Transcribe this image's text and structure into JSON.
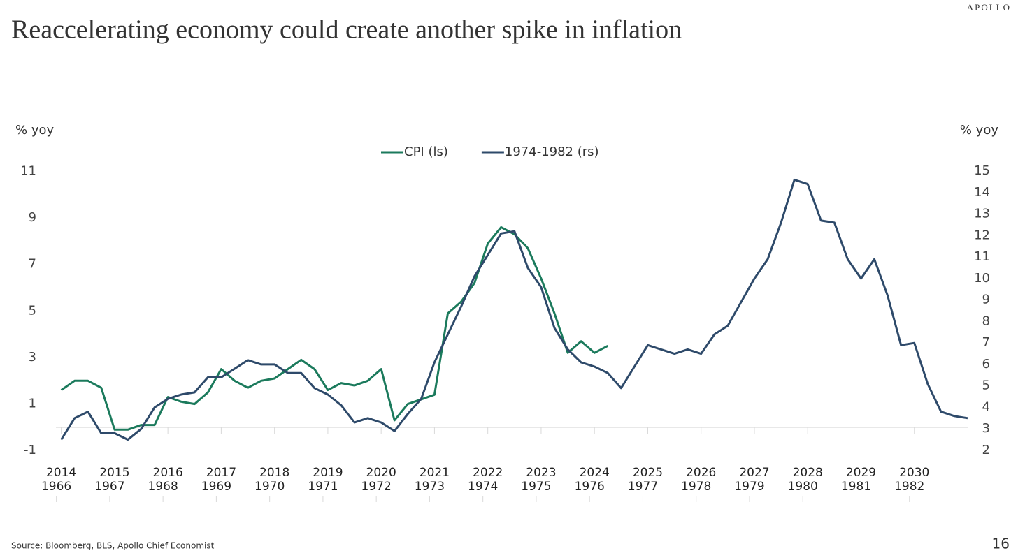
{
  "brand": "APOLLO",
  "page_number": "16",
  "source": "Source: Bloomberg, BLS, Apollo Chief Economist",
  "chart_data": {
    "type": "line",
    "title": "Reaccelerating economy could create another spike in inflation",
    "y_label": "% yoy",
    "y2_label": "% yoy",
    "x": [
      2014,
      2014.25,
      2014.5,
      2014.75,
      2015,
      2015.25,
      2015.5,
      2015.75,
      2016,
      2016.25,
      2016.5,
      2016.75,
      2017,
      2017.25,
      2017.5,
      2017.75,
      2018,
      2018.25,
      2018.5,
      2018.75,
      2019,
      2019.25,
      2019.5,
      2019.75,
      2020,
      2020.25,
      2020.5,
      2020.75,
      2021,
      2021.25,
      2021.5,
      2021.75,
      2022,
      2022.25,
      2022.5,
      2022.75,
      2023,
      2023.25,
      2023.5,
      2023.75,
      2024,
      2024.25,
      2024.5,
      2024.75,
      2025,
      2025.25,
      2025.5,
      2025.75,
      2026,
      2026.25,
      2026.5,
      2026.75,
      2027,
      2027.25,
      2027.5,
      2027.75,
      2028,
      2028.25,
      2028.5,
      2028.75,
      2029,
      2029.25,
      2029.5,
      2029.75,
      2030,
      2030.25,
      2030.5,
      2030.75,
      2031
    ],
    "series": [
      {
        "name": "CPI (ls)",
        "color": "#1b7a5c",
        "axis": "y",
        "values": [
          1.6,
          2.0,
          2.0,
          1.7,
          -0.1,
          -0.1,
          0.1,
          0.1,
          1.3,
          1.1,
          1.0,
          1.5,
          2.5,
          2.0,
          1.7,
          2.0,
          2.1,
          2.5,
          2.9,
          2.5,
          1.6,
          1.9,
          1.8,
          2.0,
          2.5,
          0.3,
          1.0,
          1.2,
          1.4,
          4.9,
          5.4,
          6.2,
          7.9,
          8.6,
          8.3,
          7.7,
          6.4,
          4.9,
          3.2,
          3.7,
          3.2,
          3.5,
          null,
          null,
          null,
          null,
          null,
          null,
          null,
          null,
          null,
          null,
          null,
          null,
          null,
          null,
          null,
          null,
          null,
          null,
          null,
          null,
          null,
          null,
          null,
          null,
          null,
          null,
          null
        ]
      },
      {
        "name": "1974-1982 (rs)",
        "color": "#2e4a6a",
        "axis": "y2",
        "values": [
          2.5,
          3.5,
          3.8,
          2.8,
          2.8,
          2.5,
          3.0,
          4.0,
          4.4,
          4.6,
          4.7,
          5.4,
          5.4,
          5.8,
          6.2,
          6.0,
          6.0,
          5.6,
          5.6,
          4.9,
          4.6,
          4.1,
          3.3,
          3.5,
          3.3,
          2.9,
          3.7,
          4.4,
          6.1,
          7.4,
          8.7,
          10.1,
          11.1,
          12.1,
          12.2,
          10.5,
          9.6,
          7.7,
          6.7,
          6.1,
          5.9,
          5.6,
          4.9,
          5.9,
          6.9,
          6.7,
          6.5,
          6.7,
          6.5,
          7.4,
          7.8,
          8.9,
          10.0,
          10.9,
          12.6,
          14.6,
          14.4,
          12.7,
          12.6,
          10.9,
          10.0,
          10.9,
          9.2,
          6.9,
          7.0,
          5.1,
          3.8,
          3.6,
          3.5
        ]
      }
    ],
    "xlim": [
      2013.9,
      2031
    ],
    "xticks": [
      2014,
      2015,
      2016,
      2017,
      2018,
      2019,
      2020,
      2021,
      2022,
      2023,
      2024,
      2025,
      2026,
      2027,
      2028,
      2029,
      2030
    ],
    "x2ticks": [
      {
        "value": 2014,
        "label": "1966"
      },
      {
        "value": 2015,
        "label": "1967"
      },
      {
        "value": 2016,
        "label": "1968"
      },
      {
        "value": 2017,
        "label": "1969"
      },
      {
        "value": 2018,
        "label": "1970"
      },
      {
        "value": 2019,
        "label": "1971"
      },
      {
        "value": 2020,
        "label": "1972"
      },
      {
        "value": 2021,
        "label": "1973"
      },
      {
        "value": 2022,
        "label": "1974"
      },
      {
        "value": 2023,
        "label": "1975"
      },
      {
        "value": 2024,
        "label": "1976"
      },
      {
        "value": 2025,
        "label": "1977"
      },
      {
        "value": 2026,
        "label": "1978"
      },
      {
        "value": 2027,
        "label": "1979"
      },
      {
        "value": 2028,
        "label": "1980"
      },
      {
        "value": 2029,
        "label": "1981"
      },
      {
        "value": 2030,
        "label": "1982"
      }
    ],
    "ylim": [
      -1.5,
      11.5
    ],
    "yticks": [
      -1,
      1,
      3,
      5,
      7,
      9,
      11
    ],
    "y2lim": [
      1.45,
      15.53
    ],
    "y2ticks": [
      2,
      3,
      4,
      5,
      6,
      7,
      8,
      9,
      10,
      11,
      12,
      13,
      14,
      15
    ],
    "legend": "top",
    "grid": false
  }
}
